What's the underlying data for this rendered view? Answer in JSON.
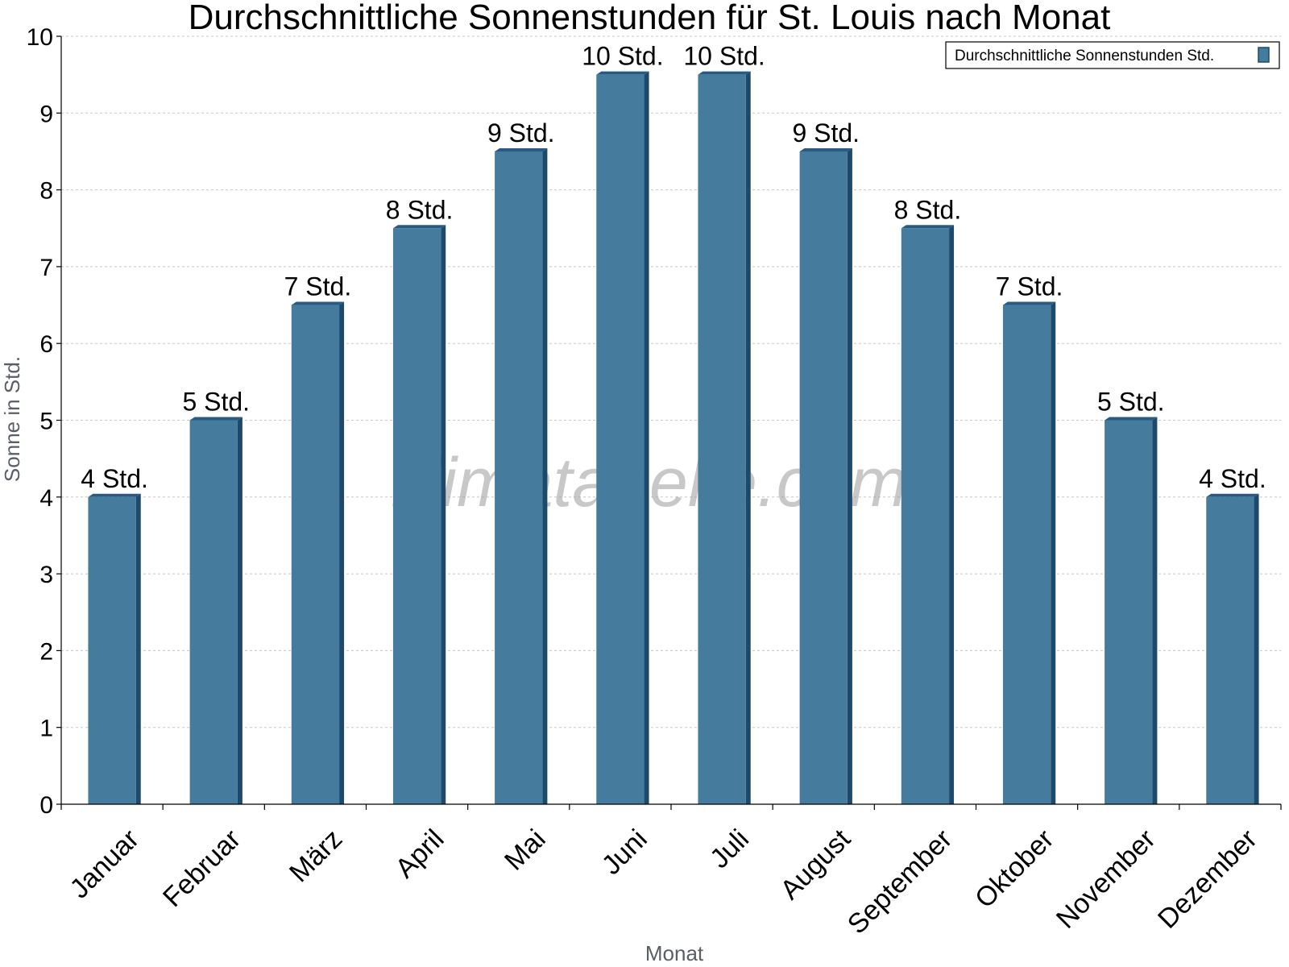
{
  "chart_data": {
    "type": "bar",
    "title": "Durchschnittliche Sonnenstunden für St. Louis nach Monat",
    "xlabel": "Monat",
    "ylabel": "Sonne in Std.",
    "ylim": [
      0,
      10
    ],
    "yticks": [
      "0",
      "1",
      "2",
      "3",
      "4",
      "5",
      "6",
      "7",
      "8",
      "9",
      "10"
    ],
    "categories": [
      "Januar",
      "Februar",
      "März",
      "April",
      "Mai",
      "Juni",
      "Juli",
      "August",
      "September",
      "Oktober",
      "November",
      "Dezember"
    ],
    "series": [
      {
        "name": "Durchschnittliche Sonnenstunden Std.",
        "values": [
          4,
          5,
          6.5,
          7.5,
          8.5,
          9.5,
          9.5,
          8.5,
          7.5,
          6.5,
          5,
          4
        ],
        "labels": [
          "4 Std.",
          "5 Std.",
          "7 Std.",
          "8 Std.",
          "9 Std.",
          "10 Std.",
          "10 Std.",
          "9 Std.",
          "8 Std.",
          "7 Std.",
          "5 Std.",
          "4 Std."
        ]
      }
    ],
    "grid": true,
    "legend_position": "top-right",
    "watermark": "klimatabelle.com",
    "colors": {
      "bar": "#457b9d",
      "bar_side": "#1d4a6b",
      "bar_top": "#2a5a80"
    }
  }
}
